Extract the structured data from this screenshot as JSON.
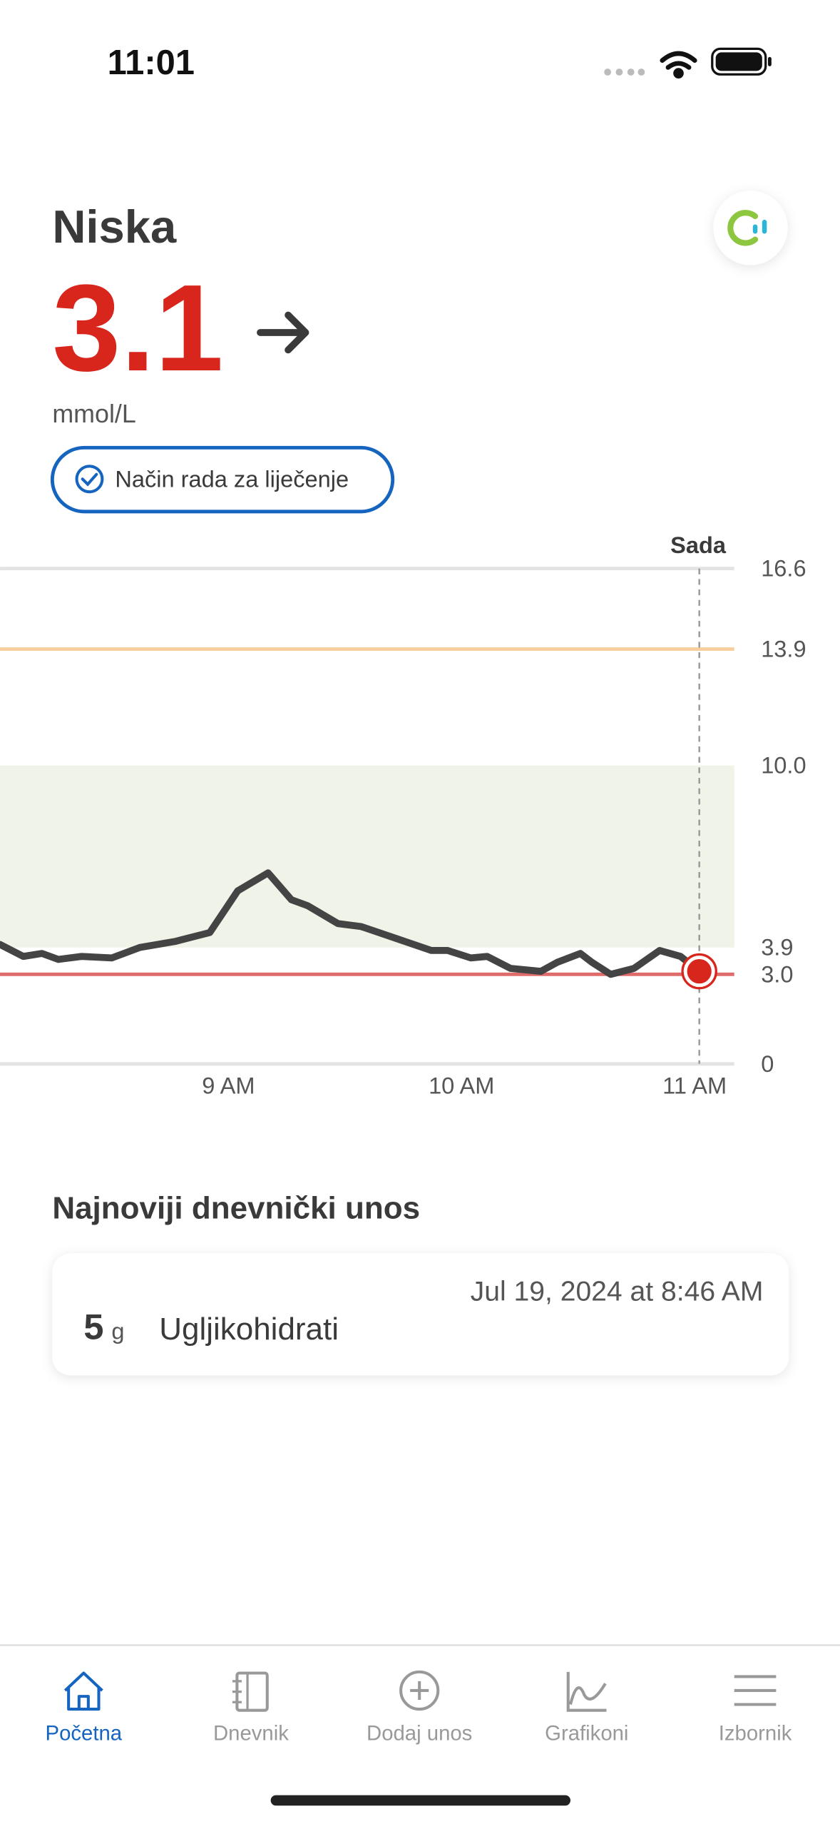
{
  "status_bar": {
    "time": "11:01"
  },
  "header": {
    "status": "Niska",
    "reading": "3.1",
    "unit": "mmol/L",
    "mode_badge": "Način rada za liječenje"
  },
  "chart_data": {
    "type": "line",
    "now_label": "Sada",
    "color": "#444444",
    "x": [
      8.02,
      8.12,
      8.2,
      8.27,
      8.37,
      8.5,
      8.62,
      8.77,
      8.92,
      9.04,
      9.17,
      9.27,
      9.34,
      9.47,
      9.57,
      9.72,
      9.87,
      9.94,
      10.04,
      10.11,
      10.21,
      10.34,
      10.41,
      10.51,
      10.56,
      10.64,
      10.74,
      10.85,
      10.94,
      11.02
    ],
    "values": [
      4.0,
      3.6,
      3.7,
      3.5,
      3.6,
      3.55,
      3.9,
      4.1,
      4.4,
      5.8,
      6.4,
      5.5,
      5.3,
      4.7,
      4.6,
      4.2,
      3.8,
      3.8,
      3.55,
      3.6,
      3.2,
      3.1,
      3.4,
      3.7,
      3.4,
      3.0,
      3.2,
      3.8,
      3.6,
      3.1
    ],
    "xlim": [
      8.02,
      11.17
    ],
    "xticks": [
      {
        "value": 9,
        "label": "9 AM"
      },
      {
        "value": 10,
        "label": "10 AM"
      },
      {
        "value": 11,
        "label": "11 AM"
      }
    ],
    "ylim": [
      0,
      16.6
    ],
    "yticks": [
      0,
      {
        "value": 3,
        "label": "3.0"
      },
      3.9,
      {
        "value": 10,
        "label": "10.0"
      },
      13.9,
      16.6
    ],
    "target_range": [
      3.9,
      10
    ],
    "target_color": "#f0f3e8",
    "high_line": 13.9,
    "high_color": "#f7cf9f",
    "low_line": 3,
    "low_color": "#e06b6b",
    "point_color": "#d8261c"
  },
  "latest_entry": {
    "title": "Najnoviji dnevnički unos",
    "date": "Jul 19, 2024 at 8:46 AM",
    "amount": "5",
    "amount_unit": "g",
    "label": "Ugljikohidrati"
  },
  "tab_bar": {
    "tabs": [
      "Početna",
      "Dnevnik",
      "Dodaj unos",
      "Grafikoni",
      "Izbornik"
    ]
  }
}
